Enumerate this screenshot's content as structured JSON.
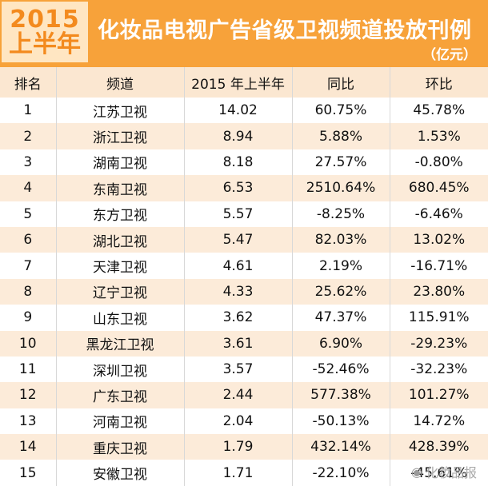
{
  "banner": {
    "year": "2015",
    "half": "上半年",
    "title": "化妆品电视广告省级卫视频道投放刊例",
    "unit": "（亿元）",
    "accent_color": "#f7a23a"
  },
  "table": {
    "headers": [
      "排名",
      "频道",
      "2015 年上半年",
      "同比",
      "环比"
    ],
    "rows": [
      [
        "1",
        "江苏卫视",
        "14.02",
        "60.75%",
        "45.78%"
      ],
      [
        "2",
        "浙江卫视",
        "8.94",
        "5.88%",
        "1.53%"
      ],
      [
        "3",
        "湖南卫视",
        "8.18",
        "27.57%",
        "-0.80%"
      ],
      [
        "4",
        "东南卫视",
        "6.53",
        "2510.64%",
        "680.45%"
      ],
      [
        "5",
        "东方卫视",
        "5.57",
        "-8.25%",
        "-6.46%"
      ],
      [
        "6",
        "湖北卫视",
        "5.47",
        "82.03%",
        "13.02%"
      ],
      [
        "7",
        "天津卫视",
        "4.61",
        "2.19%",
        "-16.71%"
      ],
      [
        "8",
        "辽宁卫视",
        "4.33",
        "25.62%",
        "23.80%"
      ],
      [
        "9",
        "山东卫视",
        "3.62",
        "47.37%",
        "115.91%"
      ],
      [
        "10",
        "黑龙江卫视",
        "3.61",
        "6.90%",
        "-29.23%"
      ],
      [
        "11",
        "深圳卫视",
        "3.57",
        "-52.46%",
        "-32.23%"
      ],
      [
        "12",
        "广东卫视",
        "2.44",
        "577.38%",
        "101.27%"
      ],
      [
        "13",
        "河南卫视",
        "2.04",
        "-50.13%",
        "14.72%"
      ],
      [
        "14",
        "重庆卫视",
        "1.79",
        "432.14%",
        "428.39%"
      ],
      [
        "15",
        "安徽卫视",
        "1.71",
        "-22.10%",
        "-45.61%"
      ]
    ]
  },
  "watermark": {
    "icon": "wechat-icon",
    "text": "化妆品报"
  }
}
